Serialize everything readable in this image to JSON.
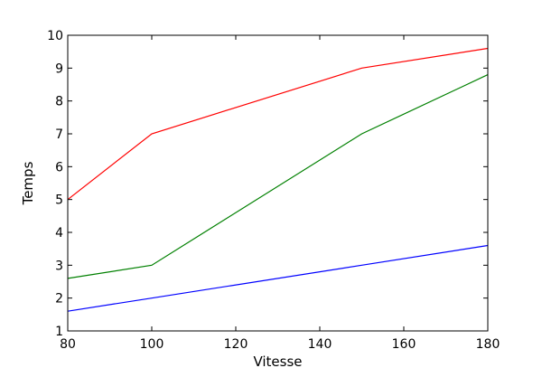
{
  "chart_data": {
    "type": "line",
    "title": "",
    "xlabel": "Vitesse",
    "ylabel": "Temps",
    "xlim": [
      80,
      180
    ],
    "ylim": [
      1,
      10
    ],
    "xticks": [
      80,
      100,
      120,
      140,
      160,
      180
    ],
    "yticks": [
      1,
      2,
      3,
      4,
      5,
      6,
      7,
      8,
      9,
      10
    ],
    "grid": false,
    "series": [
      {
        "color": "#0000ff",
        "x": [
          80,
          100,
          150,
          180
        ],
        "y": [
          1.6,
          2.0,
          3.0,
          3.6
        ]
      },
      {
        "color": "#008000",
        "x": [
          80,
          100,
          150,
          180
        ],
        "y": [
          2.6,
          3.0,
          7.0,
          8.8
        ]
      },
      {
        "color": "#ff0000",
        "x": [
          80,
          100,
          150,
          180
        ],
        "y": [
          5.0,
          7.0,
          9.0,
          9.6
        ]
      }
    ]
  }
}
